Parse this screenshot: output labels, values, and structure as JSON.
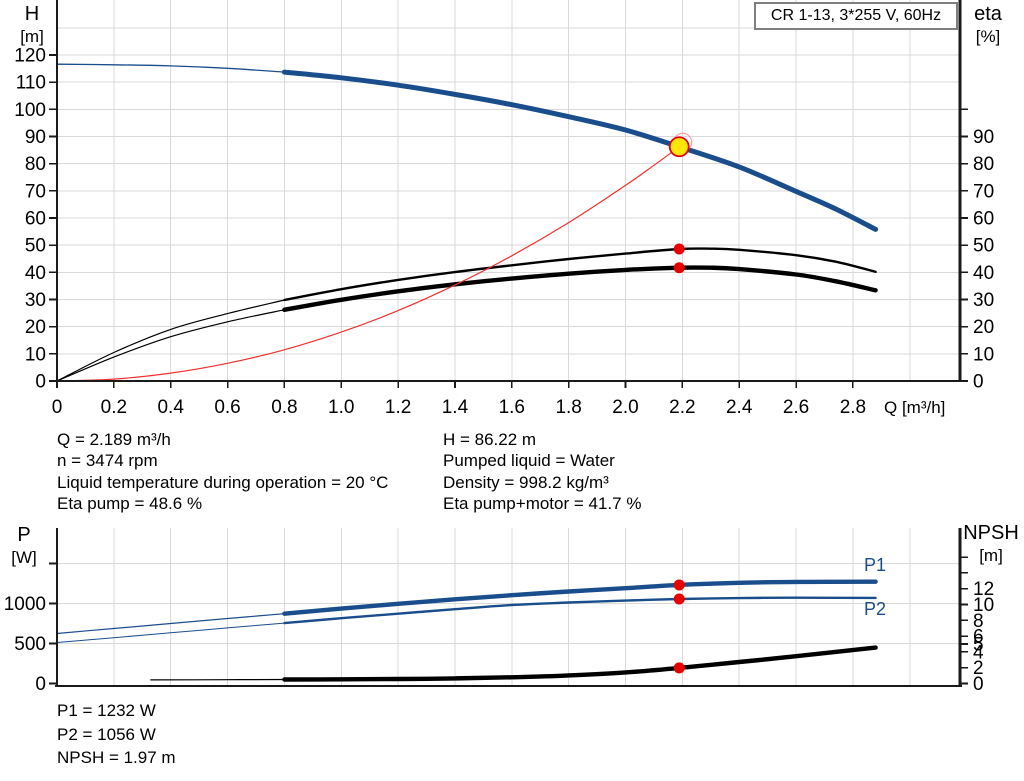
{
  "colors": {
    "curve_blue": "#1a4d8c",
    "curve_black": "#000000",
    "curve_red": "#f03030",
    "marker_red": "#e60000",
    "marker_yellow": "#ffe60a",
    "grid": "#d9d9d9",
    "axis": "#1a1a1a",
    "title_border": "#7f7f7f"
  },
  "info": {
    "q": "Q = 2.189 m³/h",
    "n": "n = 3474 rpm",
    "temp": "Liquid temperature during operation = 20 °C",
    "eta_pump": "Eta pump = 48.6 %",
    "h": "H = 86.22 m",
    "liquid": "Pumped liquid = Water",
    "density": "Density = 998.2 kg/m³",
    "eta_pump_motor": "Eta pump+motor = 41.7 %"
  },
  "results": {
    "p1": "P1 = 1232 W",
    "p2": "P2 = 1056 W",
    "npsh": "NPSH = 1.97 m"
  },
  "chart_data": [
    {
      "type": "line",
      "title": "CR 1-13, 3*255 V, 60Hz",
      "xlabel": "Q [m³/h]",
      "ylabel_left": "H",
      "ylabel_left_unit": "[m]",
      "ylabel_right": "eta",
      "ylabel_right_unit": "[%]",
      "x_range": [
        0,
        3.18
      ],
      "y_left_range": [
        0,
        140
      ],
      "y_right_range": [
        0,
        140
      ],
      "grid": true,
      "legend": false,
      "x_ticks": [
        {
          "v": 0,
          "l": "0"
        },
        {
          "v": 0.2,
          "l": "0.2"
        },
        {
          "v": 0.4,
          "l": "0.4"
        },
        {
          "v": 0.6,
          "l": "0.6"
        },
        {
          "v": 0.8,
          "l": "0.8"
        },
        {
          "v": 1.0,
          "l": "1.0"
        },
        {
          "v": 1.2,
          "l": "1.2"
        },
        {
          "v": 1.4,
          "l": "1.4"
        },
        {
          "v": 1.6,
          "l": "1.6"
        },
        {
          "v": 1.8,
          "l": "1.8"
        },
        {
          "v": 2.0,
          "l": "2.0"
        },
        {
          "v": 2.2,
          "l": "2.2"
        },
        {
          "v": 2.4,
          "l": "2.4"
        },
        {
          "v": 2.6,
          "l": "2.6"
        },
        {
          "v": 2.8,
          "l": "2.8"
        }
      ],
      "left_ticks": [
        {
          "v": 0,
          "l": "0"
        },
        {
          "v": 10,
          "l": "10"
        },
        {
          "v": 20,
          "l": "20"
        },
        {
          "v": 30,
          "l": "30"
        },
        {
          "v": 40,
          "l": "40"
        },
        {
          "v": 50,
          "l": "50"
        },
        {
          "v": 60,
          "l": "60"
        },
        {
          "v": 70,
          "l": "70"
        },
        {
          "v": 80,
          "l": "80"
        },
        {
          "v": 90,
          "l": "90"
        },
        {
          "v": 100,
          "l": "100"
        },
        {
          "v": 110,
          "l": "110"
        },
        {
          "v": 120,
          "l": "120"
        }
      ],
      "right_ticks": [
        {
          "v": 0,
          "l": "0"
        },
        {
          "v": 10,
          "l": "10"
        },
        {
          "v": 20,
          "l": "20"
        },
        {
          "v": 30,
          "l": "30"
        },
        {
          "v": 40,
          "l": "40"
        },
        {
          "v": 50,
          "l": "50"
        },
        {
          "v": 60,
          "l": "60"
        },
        {
          "v": 70,
          "l": "70"
        },
        {
          "v": 80,
          "l": "80"
        },
        {
          "v": 90,
          "l": "90"
        },
        {
          "v": 100,
          "l": ""
        }
      ],
      "duty_point": {
        "Q_m3h": 2.189,
        "H_m": 86.22,
        "eta_pump_pct": 48.6,
        "eta_pump_plus_motor_pct": 41.7,
        "n_rpm": 3474,
        "liquid": "Water",
        "temperature_C": 20,
        "density_kg_m3": 998.2
      },
      "series": [
        {
          "name": "head-curve",
          "label": "H",
          "axis": "left",
          "color": "#1a4d8c",
          "split_x": 0.8,
          "thin_width": 1.3,
          "thick_width": 5,
          "points": [
            [
              0,
              116.6
            ],
            [
              0.2,
              116.4
            ],
            [
              0.4,
              116.0
            ],
            [
              0.6,
              115.1
            ],
            [
              0.8,
              113.7
            ],
            [
              1.0,
              111.6
            ],
            [
              1.2,
              108.9
            ],
            [
              1.4,
              105.5
            ],
            [
              1.6,
              101.7
            ],
            [
              1.8,
              97.3
            ],
            [
              2.0,
              92.4
            ],
            [
              2.189,
              86.22
            ],
            [
              2.4,
              78.8
            ],
            [
              2.6,
              69.8
            ],
            [
              2.74,
              63.3
            ],
            [
              2.88,
              55.8
            ]
          ]
        },
        {
          "name": "eta-pump-curve",
          "label": "eta pump",
          "axis": "right",
          "color": "#000000",
          "split_x": 0.8,
          "thin_width": 1.2,
          "thick_width": 2.4,
          "points": [
            [
              0,
              0
            ],
            [
              0.2,
              10.5
            ],
            [
              0.4,
              19.0
            ],
            [
              0.6,
              24.8
            ],
            [
              0.8,
              29.8
            ],
            [
              1.0,
              33.8
            ],
            [
              1.2,
              37.2
            ],
            [
              1.4,
              40.1
            ],
            [
              1.6,
              42.6
            ],
            [
              1.8,
              44.9
            ],
            [
              2.0,
              46.9
            ],
            [
              2.189,
              48.6
            ],
            [
              2.3,
              48.7
            ],
            [
              2.4,
              48.3
            ],
            [
              2.6,
              46.3
            ],
            [
              2.74,
              43.9
            ],
            [
              2.88,
              40.2
            ]
          ]
        },
        {
          "name": "eta-pump-motor-curve",
          "label": "eta pump+motor",
          "axis": "right",
          "color": "#000000",
          "split_x": 0.8,
          "thin_width": 1.2,
          "thick_width": 4.4,
          "points": [
            [
              0,
              0
            ],
            [
              0.2,
              8.8
            ],
            [
              0.4,
              16.3
            ],
            [
              0.6,
              21.8
            ],
            [
              0.8,
              26.2
            ],
            [
              1.0,
              29.9
            ],
            [
              1.2,
              33.0
            ],
            [
              1.4,
              35.6
            ],
            [
              1.6,
              37.7
            ],
            [
              1.8,
              39.5
            ],
            [
              2.0,
              40.9
            ],
            [
              2.189,
              41.7
            ],
            [
              2.3,
              41.7
            ],
            [
              2.4,
              41.2
            ],
            [
              2.6,
              39.2
            ],
            [
              2.74,
              36.7
            ],
            [
              2.88,
              33.4
            ]
          ]
        },
        {
          "name": "system-curve",
          "label": "system curve",
          "axis": "left",
          "color": "#f03030",
          "width": 1.2,
          "points": [
            [
              0,
              0
            ],
            [
              0.2,
              0.7
            ],
            [
              0.4,
              2.9
            ],
            [
              0.6,
              6.5
            ],
            [
              0.8,
              11.5
            ],
            [
              1.0,
              18.0
            ],
            [
              1.2,
              25.9
            ],
            [
              1.4,
              35.3
            ],
            [
              1.6,
              46.1
            ],
            [
              1.8,
              58.3
            ],
            [
              2.0,
              72.0
            ],
            [
              2.1,
              79.4
            ],
            [
              2.189,
              86.22
            ]
          ]
        }
      ],
      "markers": [
        {
          "name": "duty-point",
          "type": "duty",
          "x": 2.189,
          "y": 86.22,
          "axis": "left"
        },
        {
          "name": "eta-pump-point",
          "type": "dot",
          "x": 2.189,
          "y": 48.6,
          "axis": "right"
        },
        {
          "name": "eta-pump-motor-point",
          "type": "dot",
          "x": 2.189,
          "y": 41.7,
          "axis": "right"
        }
      ]
    },
    {
      "type": "line",
      "title": "",
      "xlabel": "",
      "ylabel_left": "P",
      "ylabel_left_unit": "[W]",
      "ylabel_right": "NPSH",
      "ylabel_right_unit": "[m]",
      "x_range": [
        0,
        3.18
      ],
      "y_left_range": [
        0,
        1944
      ],
      "y_right_range": [
        0,
        19.7
      ],
      "grid": true,
      "legend": false,
      "x_ticks": [],
      "left_ticks": [
        {
          "v": 0,
          "l": "0"
        },
        {
          "v": 500,
          "l": "500"
        },
        {
          "v": 1000,
          "l": "1000"
        },
        {
          "v": 1500,
          "l": ""
        }
      ],
      "right_ticks": [
        {
          "v": 0,
          "l": "0"
        },
        {
          "v": 2,
          "l": "2"
        },
        {
          "v": 4,
          "l": "4"
        },
        {
          "v": 5,
          "l": "5"
        },
        {
          "v": 6,
          "l": "6"
        },
        {
          "v": 8,
          "l": "8"
        },
        {
          "v": 10,
          "l": "10"
        },
        {
          "v": 12,
          "l": "12"
        },
        {
          "v": 14,
          "l": ""
        },
        {
          "v": 16,
          "l": ""
        }
      ],
      "duty_point": {
        "Q_m3h": 2.189,
        "P1_W": 1232,
        "P2_W": 1056,
        "NPSH_m": 1.97
      },
      "series": [
        {
          "name": "p1-curve",
          "label": "P1",
          "axis": "left",
          "color": "#1a4d8c",
          "split_x": 0.8,
          "thin_width": 1.2,
          "thick_width": 4.4,
          "points": [
            [
              0,
              625
            ],
            [
              0.2,
              688
            ],
            [
              0.4,
              750
            ],
            [
              0.6,
              812
            ],
            [
              0.8,
              872
            ],
            [
              1.0,
              936
            ],
            [
              1.2,
              996
            ],
            [
              1.4,
              1052
            ],
            [
              1.6,
              1104
            ],
            [
              1.8,
              1150
            ],
            [
              2.0,
              1191
            ],
            [
              2.189,
              1232
            ],
            [
              2.4,
              1259
            ],
            [
              2.6,
              1270
            ],
            [
              2.88,
              1272
            ]
          ]
        },
        {
          "name": "p2-curve",
          "label": "P2",
          "axis": "left",
          "color": "#1a4d8c",
          "split_x": 0.8,
          "thin_width": 1.0,
          "thick_width": 2.4,
          "points": [
            [
              0,
              512
            ],
            [
              0.2,
              573
            ],
            [
              0.4,
              634
            ],
            [
              0.6,
              695
            ],
            [
              0.8,
              755
            ],
            [
              1.0,
              816
            ],
            [
              1.2,
              873
            ],
            [
              1.4,
              929
            ],
            [
              1.6,
              981
            ],
            [
              1.8,
              1012
            ],
            [
              2.0,
              1036
            ],
            [
              2.189,
              1056
            ],
            [
              2.4,
              1068
            ],
            [
              2.6,
              1072
            ],
            [
              2.88,
              1070
            ]
          ]
        },
        {
          "name": "npsh-curve",
          "label": "NPSH",
          "axis": "right",
          "color": "#000000",
          "split_x": 0.8,
          "thin_width": 1.2,
          "thick_width": 4.4,
          "points": [
            [
              0.33,
              0.45
            ],
            [
              0.6,
              0.48
            ],
            [
              0.8,
              0.5
            ],
            [
              1.0,
              0.53
            ],
            [
              1.2,
              0.57
            ],
            [
              1.4,
              0.64
            ],
            [
              1.6,
              0.78
            ],
            [
              1.8,
              1.02
            ],
            [
              2.0,
              1.4
            ],
            [
              2.189,
              1.97
            ],
            [
              2.4,
              2.72
            ],
            [
              2.6,
              3.45
            ],
            [
              2.88,
              4.55
            ]
          ]
        }
      ],
      "markers": [
        {
          "name": "p1-point",
          "type": "dot",
          "x": 2.189,
          "y": 1232,
          "axis": "left"
        },
        {
          "name": "p2-point",
          "type": "dot",
          "x": 2.189,
          "y": 1056,
          "axis": "left"
        },
        {
          "name": "npsh-point",
          "type": "dot",
          "x": 2.189,
          "y": 1.97,
          "axis": "right"
        }
      ]
    }
  ]
}
